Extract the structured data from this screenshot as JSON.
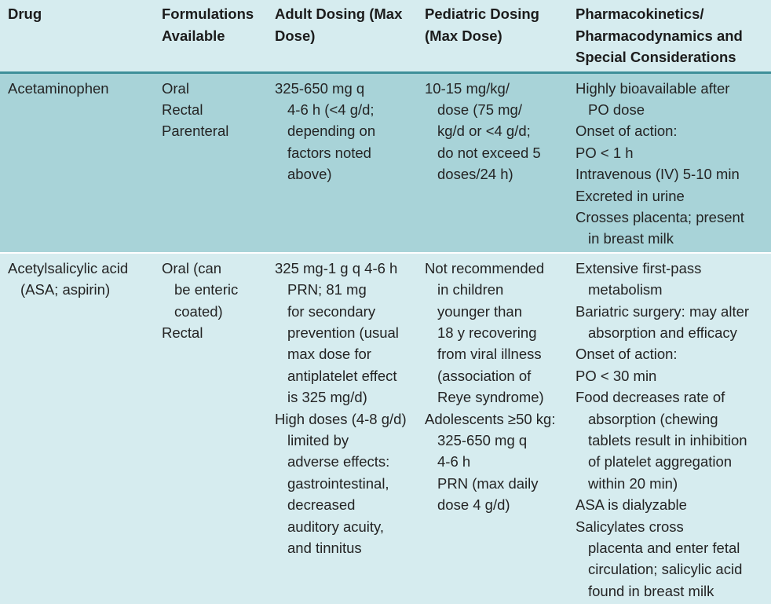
{
  "table": {
    "headers": [
      "Drug",
      "Formulations Available",
      "Adult Dosing (Max Dose)",
      "Pediatric Dosing (Max Dose)",
      "Pharmacokinetics/ Pharmacodynamics and Special Considerations"
    ],
    "header_lines": [
      [
        "Drug"
      ],
      [
        "Formulations",
        "Available"
      ],
      [
        "Adult Dosing (Max",
        "Dose)"
      ],
      [
        "Pediatric Dosing",
        "(Max Dose)"
      ],
      [
        "Pharmacokinetics/",
        "Pharmacodynamics and",
        "Special Considerations"
      ]
    ],
    "rows": [
      {
        "drug": [
          "Acetaminophen"
        ],
        "formulations": [
          "Oral",
          "Rectal",
          "Parenteral"
        ],
        "adult": [
          "325-650 mg q",
          "4-6 h (<4 g/d;",
          "depending on",
          "factors noted",
          "above)"
        ],
        "pediatric": [
          "10-15 mg/kg/",
          "dose (75 mg/",
          "kg/d or <4 g/d;",
          "do not exceed 5",
          "doses/24 h)"
        ],
        "pk": [
          "Highly bioavailable after",
          "PO dose",
          "Onset of action:",
          "PO < 1 h",
          "Intravenous (IV) 5-10 min",
          "Excreted in urine",
          "Crosses placenta; present",
          "in breast milk"
        ]
      },
      {
        "drug": [
          "Acetylsalicylic acid",
          "(ASA; aspirin)"
        ],
        "formulations": [
          "Oral (can",
          "be enteric",
          "coated)",
          "Rectal"
        ],
        "adult": [
          "325 mg-1 g q 4-6 h",
          "PRN; 81 mg",
          "for secondary",
          "prevention (usual",
          "max dose for",
          "antiplatelet effect",
          "is 325 mg/d)",
          "High doses (4-8 g/d)",
          "limited by",
          "adverse effects:",
          "gastrointestinal,",
          "decreased",
          "auditory acuity,",
          "and tinnitus"
        ],
        "pediatric": [
          "Not recommended",
          "in children",
          "younger than",
          "18 y recovering",
          "from viral illness",
          "(association of",
          "Reye syndrome)",
          "Adolescents ≥50 kg:",
          "325-650 mg q",
          "4-6 h",
          "PRN (max daily",
          "dose 4 g/d)"
        ],
        "pk": [
          "Extensive first-pass",
          "metabolism",
          "Bariatric surgery: may alter",
          "absorption and efficacy",
          "Onset of action:",
          "PO < 30 min",
          "Food decreases rate of",
          "absorption (chewing",
          "tablets result in inhibition",
          "of platelet aggregation",
          "within 20 min)",
          "ASA is dialyzable",
          "Salicylates cross",
          "placenta and enter fetal",
          "circulation; salicylic acid",
          "found in breast milk"
        ]
      }
    ]
  }
}
